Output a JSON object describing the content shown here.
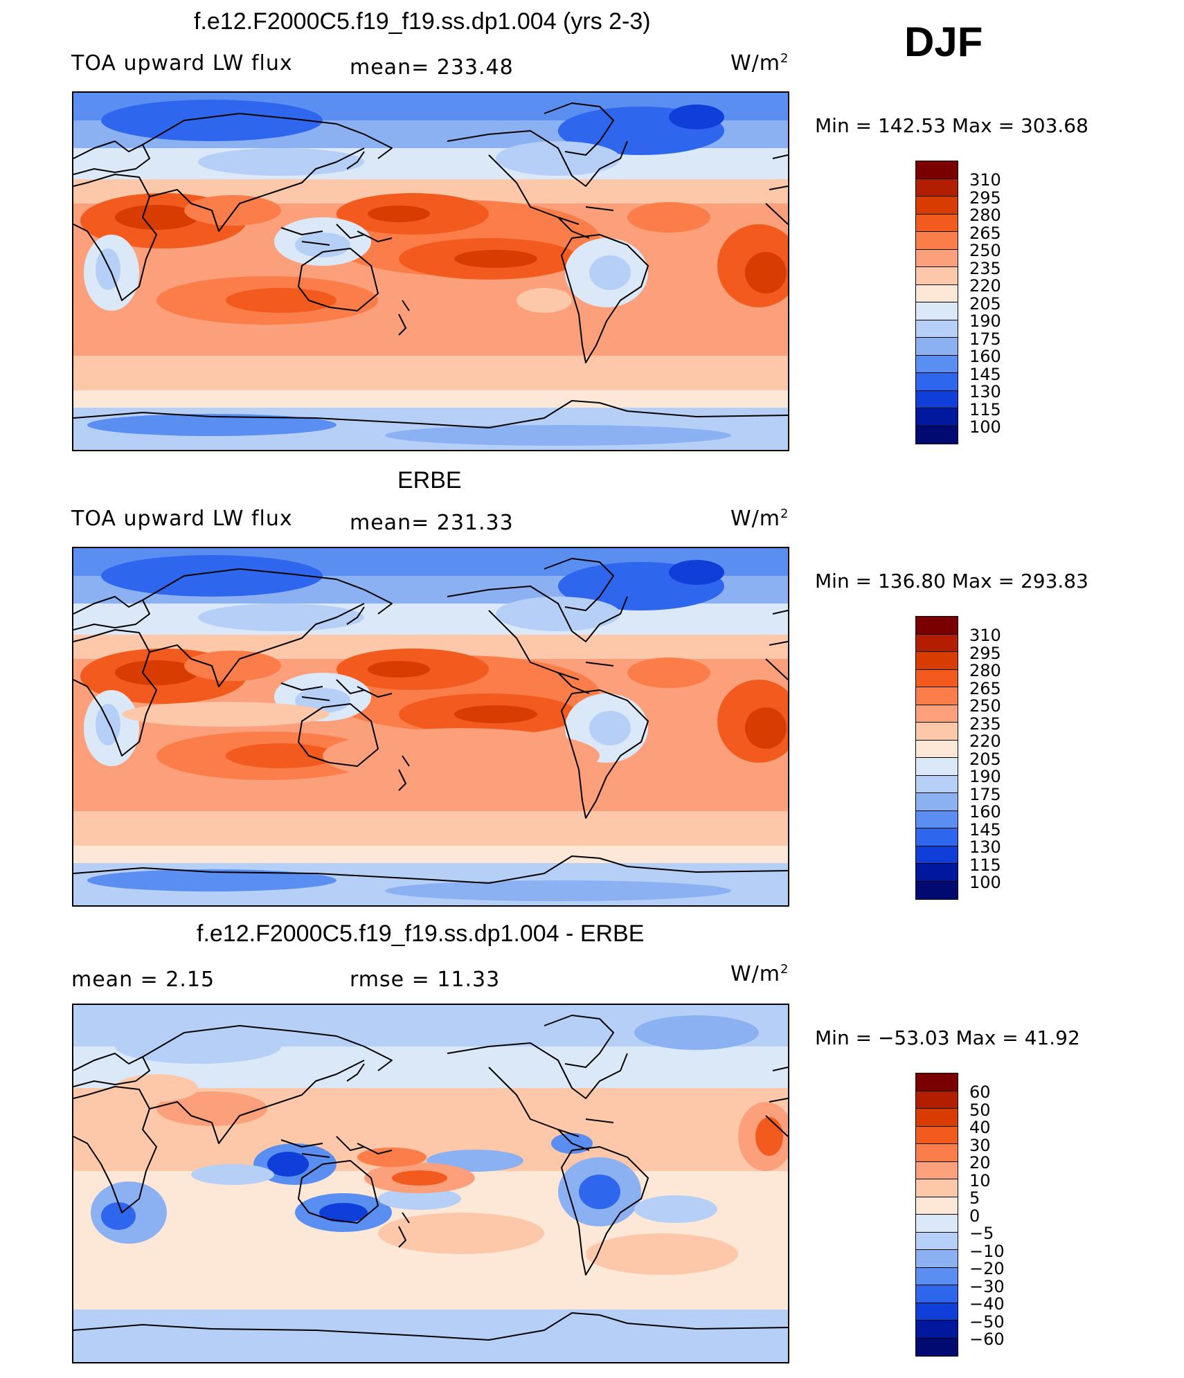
{
  "season": "DJF",
  "panels": [
    {
      "title": "f.e12.F2000C5.f19_f19.ss.dp1.004 (yrs 2-3)",
      "left_label": "TOA upward LW flux",
      "center_label": "mean= 233.48",
      "units_base": "W/m",
      "units_exp": "2",
      "minmax": "Min  =  142.53  Max  =  303.68",
      "colorbar_labels": [
        "310",
        "295",
        "280",
        "265",
        "250",
        "235",
        "220",
        "205",
        "190",
        "175",
        "160",
        "145",
        "130",
        "115",
        "100"
      ]
    },
    {
      "title": "ERBE",
      "left_label": "TOA upward LW flux",
      "center_label": "mean= 231.33",
      "units_base": "W/m",
      "units_exp": "2",
      "minmax": "Min  =  136.80  Max  =  293.83",
      "colorbar_labels": [
        "310",
        "295",
        "280",
        "265",
        "250",
        "235",
        "220",
        "205",
        "190",
        "175",
        "160",
        "145",
        "130",
        "115",
        "100"
      ]
    },
    {
      "title": "f.e12.F2000C5.f19_f19.ss.dp1.004 - ERBE",
      "left_label": "mean =     2.15",
      "center_label": "rmse =    11.33",
      "units_base": "W/m",
      "units_exp": "2",
      "minmax": "Min  =  −53.03  Max  =    41.92",
      "colorbar_labels": [
        "60",
        "50",
        "40",
        "30",
        "20",
        "10",
        "5",
        "0",
        "−5",
        "−10",
        "−20",
        "−30",
        "−40",
        "−50",
        "−60"
      ]
    }
  ],
  "colors": {
    "palette": [
      "#7a0000",
      "#b41e00",
      "#d83c00",
      "#f35a1e",
      "#fb7d4a",
      "#fba07a",
      "#fdc8aa",
      "#fde8d8",
      "#dbe8f8",
      "#b5cff6",
      "#8cb1f2",
      "#5a8ef0",
      "#2f66ee",
      "#0f3fd8",
      "#00189e",
      "#000a70"
    ],
    "ocean_bg": "#fde8d8",
    "coast": "#000000"
  },
  "chart_data": [
    {
      "type": "heatmap",
      "title": "f.e12.F2000C5.f19_f19.ss.dp1.004 (yrs 2-3)",
      "variable": "TOA upward LW flux",
      "units": "W/m2",
      "mean": 233.48,
      "min": 142.53,
      "max": 303.68,
      "levels": [
        100,
        115,
        130,
        145,
        160,
        175,
        190,
        205,
        220,
        235,
        250,
        265,
        280,
        295,
        310
      ]
    },
    {
      "type": "heatmap",
      "title": "ERBE",
      "variable": "TOA upward LW flux",
      "units": "W/m2",
      "mean": 231.33,
      "min": 136.8,
      "max": 293.83,
      "levels": [
        100,
        115,
        130,
        145,
        160,
        175,
        190,
        205,
        220,
        235,
        250,
        265,
        280,
        295,
        310
      ]
    },
    {
      "type": "heatmap",
      "title": "f.e12.F2000C5.f19_f19.ss.dp1.004 - ERBE",
      "units": "W/m2",
      "mean": 2.15,
      "rmse": 11.33,
      "min": -53.03,
      "max": 41.92,
      "levels": [
        -60,
        -50,
        -40,
        -30,
        -20,
        -10,
        -5,
        0,
        5,
        10,
        20,
        30,
        40,
        50,
        60
      ]
    }
  ]
}
